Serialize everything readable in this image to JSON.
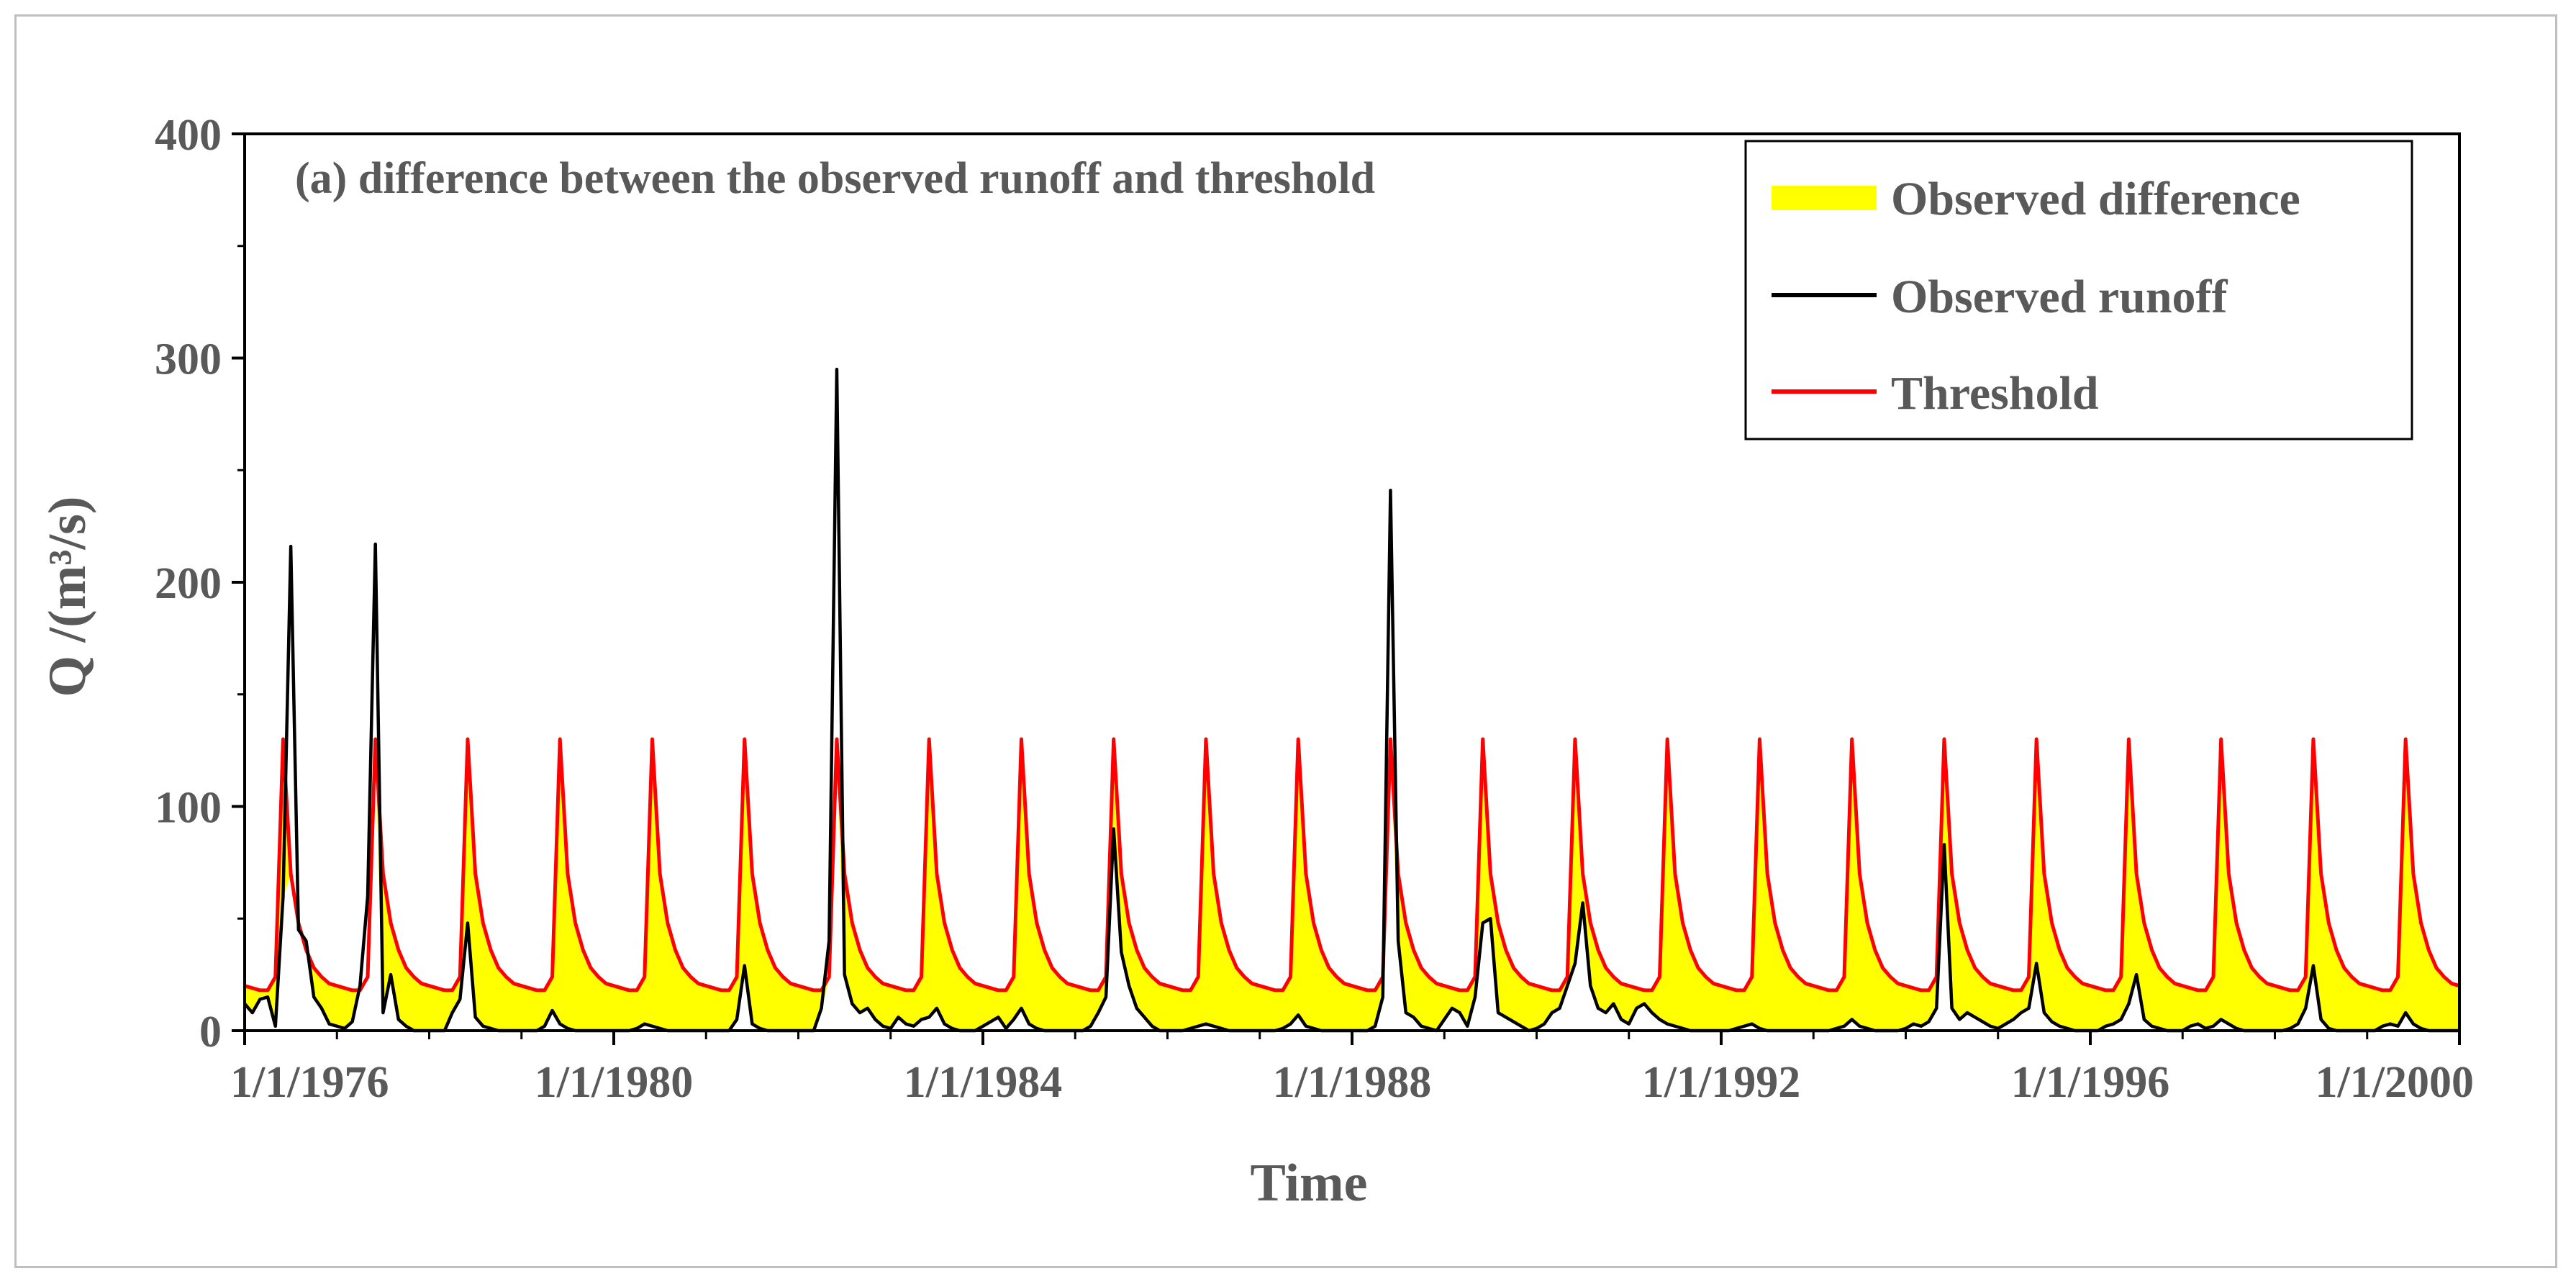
{
  "chart_data": {
    "type": "area",
    "title": "(a) difference between the observed runoff and threshold",
    "xlabel": "Time",
    "ylabel": "Q /(m³/s)",
    "ylim": [
      0,
      400
    ],
    "yticks": [
      "0",
      "100",
      "200",
      "300",
      "400"
    ],
    "xlim": [
      1976.0,
      2000.0
    ],
    "xticks": [
      {
        "value": 1976.0,
        "label": "1/1/1976"
      },
      {
        "value": 1980.0,
        "label": "1/1/1980"
      },
      {
        "value": 1984.0,
        "label": "1/1/1984"
      },
      {
        "value": 1988.0,
        "label": "1/1/1988"
      },
      {
        "value": 1992.0,
        "label": "1/1/1992"
      },
      {
        "value": 1996.0,
        "label": "1/1/1996"
      },
      {
        "value": 2000.0,
        "label": "1/1/2000"
      }
    ],
    "threshold_profile_monthly": [
      20,
      19,
      18,
      18,
      24,
      130,
      70,
      48,
      36,
      28,
      24,
      21
    ],
    "legend": {
      "position": "top-right",
      "entries": [
        {
          "name": "Observed difference",
          "type": "area",
          "color": "#ffff00"
        },
        {
          "name": "Observed runoff",
          "type": "line",
          "color": "#000000"
        },
        {
          "name": "Threshold",
          "type": "line",
          "color": "#ff0000"
        }
      ]
    },
    "series": [
      {
        "name": "Threshold",
        "color": "#ff0000",
        "start": 1976.0,
        "step_months": 1,
        "values": [
          20,
          19,
          18,
          18,
          24,
          130,
          70,
          48,
          36,
          28,
          24,
          21,
          20,
          19,
          18,
          18,
          24,
          130,
          70,
          48,
          36,
          28,
          24,
          21,
          20,
          19,
          18,
          18,
          24,
          130,
          70,
          48,
          36,
          28,
          24,
          21,
          20,
          19,
          18,
          18,
          24,
          130,
          70,
          48,
          36,
          28,
          24,
          21,
          20,
          19,
          18,
          18,
          24,
          130,
          70,
          48,
          36,
          28,
          24,
          21,
          20,
          19,
          18,
          18,
          24,
          130,
          70,
          48,
          36,
          28,
          24,
          21,
          20,
          19,
          18,
          18,
          24,
          130,
          70,
          48,
          36,
          28,
          24,
          21,
          20,
          19,
          18,
          18,
          24,
          130,
          70,
          48,
          36,
          28,
          24,
          21,
          20,
          19,
          18,
          18,
          24,
          130,
          70,
          48,
          36,
          28,
          24,
          21,
          20,
          19,
          18,
          18,
          24,
          130,
          70,
          48,
          36,
          28,
          24,
          21,
          20,
          19,
          18,
          18,
          24,
          130,
          70,
          48,
          36,
          28,
          24,
          21,
          20,
          19,
          18,
          18,
          24,
          130,
          70,
          48,
          36,
          28,
          24,
          21,
          20,
          19,
          18,
          18,
          24,
          130,
          70,
          48,
          36,
          28,
          24,
          21,
          20,
          19,
          18,
          18,
          24,
          130,
          70,
          48,
          36,
          28,
          24,
          21,
          20,
          19,
          18,
          18,
          24,
          130,
          70,
          48,
          36,
          28,
          24,
          21,
          20,
          19,
          18,
          18,
          24,
          130,
          70,
          48,
          36,
          28,
          24,
          21,
          20,
          19,
          18,
          18,
          24,
          130,
          70,
          48,
          36,
          28,
          24,
          21,
          20,
          19,
          18,
          18,
          24,
          130,
          70,
          48,
          36,
          28,
          24,
          21,
          20,
          19,
          18,
          18,
          24,
          130,
          70,
          48,
          36,
          28,
          24,
          21,
          20,
          19,
          18,
          18,
          24,
          130,
          70,
          48,
          36,
          28,
          24,
          21,
          20,
          19,
          18,
          18,
          24,
          130,
          70,
          48,
          36,
          28,
          24,
          21,
          20,
          19,
          18,
          18,
          24,
          130,
          70,
          48,
          36,
          28,
          24,
          21,
          20,
          19,
          18,
          18,
          24,
          130,
          70,
          48,
          36,
          28,
          24,
          21,
          20,
          19,
          18,
          18,
          24,
          130,
          70,
          48,
          36,
          28,
          24,
          21,
          20
        ]
      },
      {
        "name": "Observed runoff",
        "color": "#000000",
        "start": 1976.0,
        "step_months": 1,
        "values": [
          12,
          8,
          14,
          15,
          2,
          60,
          216,
          45,
          40,
          15,
          10,
          3,
          2,
          1,
          4,
          20,
          60,
          217,
          8,
          25,
          5,
          2,
          0,
          0,
          0,
          0,
          0,
          8,
          14,
          48,
          6,
          2,
          1,
          0,
          0,
          0,
          0,
          0,
          0,
          2,
          9,
          3,
          1,
          0,
          0,
          0,
          0,
          0,
          0,
          0,
          0,
          1,
          3,
          2,
          1,
          0,
          0,
          0,
          0,
          0,
          0,
          0,
          0,
          0,
          5,
          29,
          3,
          1,
          0,
          0,
          0,
          0,
          0,
          0,
          0,
          10,
          40,
          295,
          25,
          12,
          8,
          10,
          5,
          2,
          1,
          6,
          3,
          2,
          5,
          6,
          10,
          3,
          1,
          0,
          0,
          0,
          2,
          4,
          6,
          1,
          5,
          10,
          3,
          1,
          0,
          0,
          0,
          0,
          0,
          0,
          2,
          8,
          15,
          90,
          35,
          20,
          10,
          6,
          2,
          0,
          0,
          0,
          0,
          1,
          2,
          3,
          2,
          1,
          0,
          0,
          0,
          0,
          0,
          0,
          0,
          1,
          3,
          7,
          2,
          1,
          0,
          0,
          0,
          0,
          0,
          0,
          0,
          2,
          15,
          241,
          40,
          8,
          6,
          2,
          1,
          0,
          5,
          10,
          8,
          2,
          15,
          48,
          50,
          8,
          6,
          4,
          2,
          0,
          1,
          3,
          8,
          10,
          20,
          30,
          57,
          20,
          10,
          8,
          12,
          5,
          3,
          10,
          12,
          8,
          5,
          3,
          2,
          1,
          0,
          0,
          0,
          0,
          0,
          0,
          1,
          2,
          3,
          1,
          0,
          0,
          0,
          0,
          0,
          0,
          0,
          0,
          0,
          1,
          2,
          5,
          2,
          1,
          0,
          0,
          0,
          0,
          1,
          3,
          2,
          4,
          10,
          83,
          10,
          5,
          8,
          6,
          4,
          2,
          1,
          3,
          5,
          8,
          10,
          30,
          8,
          4,
          2,
          1,
          0,
          0,
          0,
          0,
          2,
          3,
          5,
          12,
          25,
          5,
          2,
          1,
          0,
          0,
          0,
          2,
          3,
          1,
          2,
          5,
          3,
          1,
          0,
          0,
          0,
          0,
          0,
          0,
          1,
          3,
          10,
          29,
          5,
          1,
          0,
          0,
          0,
          0,
          0,
          0,
          2,
          3,
          2,
          8,
          3,
          1,
          0,
          0,
          0,
          0,
          0
        ]
      }
    ]
  }
}
